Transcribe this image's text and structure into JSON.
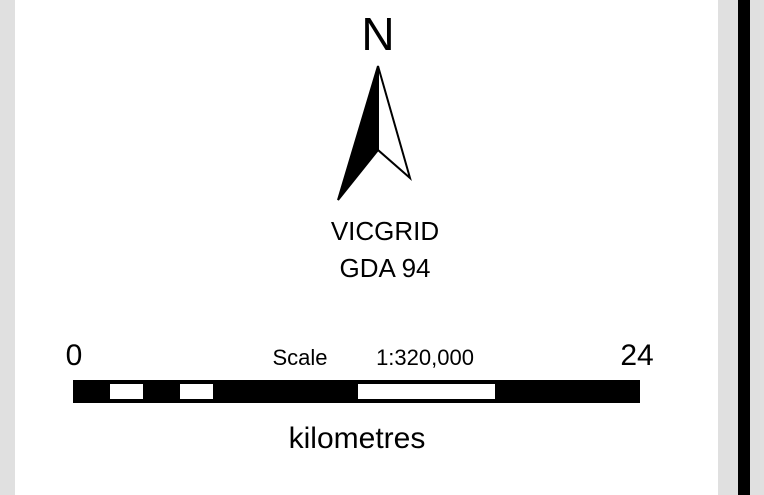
{
  "north_label": "N",
  "projection": [
    "VICGRID",
    "GDA 94"
  ],
  "scale_bar": {
    "start": 0,
    "end": 24,
    "scale_label": "Scale",
    "ratio": "1:320,000",
    "units": "kilometres"
  }
}
